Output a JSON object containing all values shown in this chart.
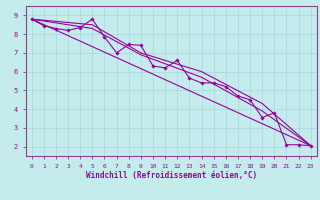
{
  "xlabel": "Windchill (Refroidissement éolien,°C)",
  "bg_color": "#c5ecec",
  "line_color": "#990099",
  "observed_x": [
    0,
    1,
    2,
    3,
    4,
    5,
    6,
    7,
    8,
    9,
    10,
    11,
    12,
    13,
    14,
    15,
    16,
    17,
    18,
    19,
    20,
    21,
    22,
    23
  ],
  "observed_y": [
    8.8,
    8.45,
    8.3,
    8.2,
    8.35,
    8.8,
    7.85,
    7.0,
    7.45,
    7.4,
    6.3,
    6.2,
    6.6,
    5.65,
    5.4,
    5.4,
    5.2,
    4.7,
    4.5,
    3.55,
    3.8,
    2.1,
    2.1,
    2.05
  ],
  "reg_line1_x": [
    0,
    23
  ],
  "reg_line1_y": [
    8.8,
    2.05
  ],
  "reg_line2_x": [
    0,
    5,
    9,
    14,
    19,
    23
  ],
  "reg_line2_y": [
    8.8,
    8.5,
    7.0,
    6.0,
    4.3,
    2.05
  ],
  "reg_line3_x": [
    0,
    5,
    9,
    14,
    19,
    23
  ],
  "reg_line3_y": [
    8.8,
    8.3,
    6.9,
    5.7,
    3.9,
    2.05
  ],
  "xlim": [
    -0.5,
    23.5
  ],
  "ylim": [
    1.5,
    9.5
  ],
  "yticks": [
    2,
    3,
    4,
    5,
    6,
    7,
    8,
    9
  ],
  "xticks": [
    0,
    1,
    2,
    3,
    4,
    5,
    6,
    7,
    8,
    9,
    10,
    11,
    12,
    13,
    14,
    15,
    16,
    17,
    18,
    19,
    20,
    21,
    22,
    23
  ],
  "grid_color": "#a8d8d8",
  "font_color": "#990099",
  "spine_color": "#884488"
}
